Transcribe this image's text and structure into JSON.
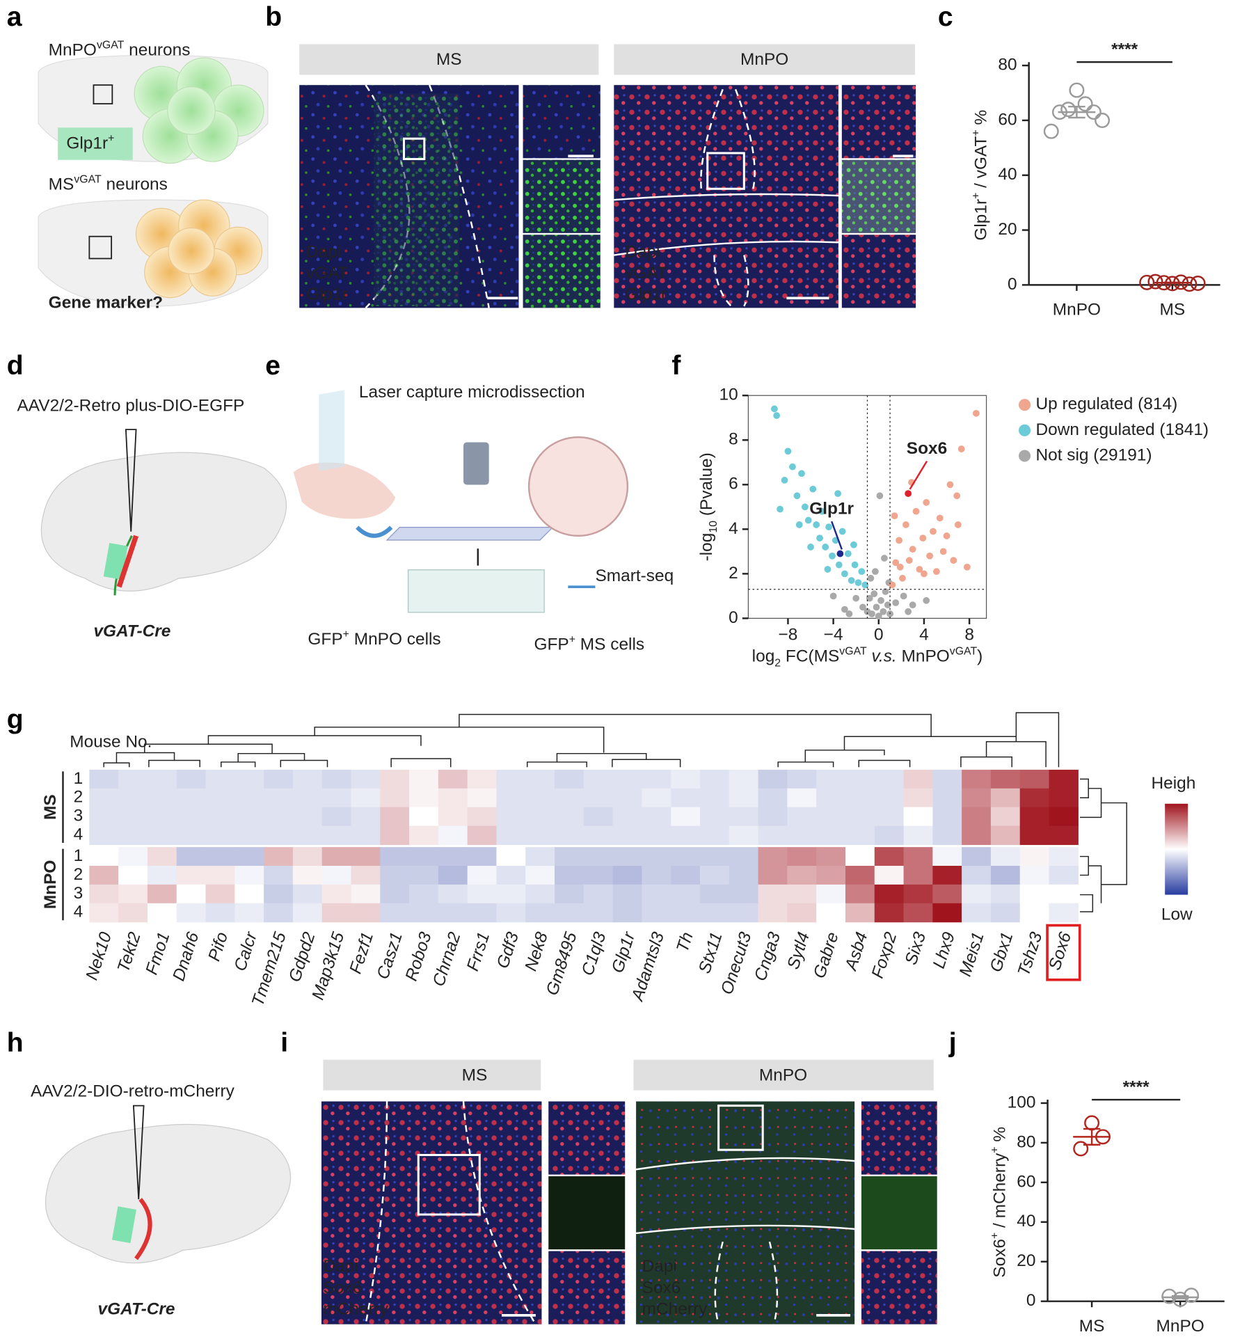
{
  "panels": {
    "a": "a",
    "b": "b",
    "c": "c",
    "d": "d",
    "e": "e",
    "f": "f",
    "g": "g",
    "h": "h",
    "i": "i",
    "j": "j"
  },
  "a": {
    "top": [
      {
        "text": "MnPO"
      },
      {
        "text": "vGAT",
        "style": "sup"
      },
      {
        "text": " neurons"
      }
    ],
    "marker": [
      {
        "text": "Glp1r"
      },
      {
        "text": "+",
        "style": "sup"
      }
    ],
    "bottom": [
      {
        "text": "MS"
      },
      {
        "text": "vGAT",
        "style": "sup"
      },
      {
        "text": " neurons"
      }
    ],
    "question": "Gene marker?"
  },
  "b": {
    "headers": [
      "MS",
      "MnPO"
    ],
    "channels": [
      "Dapi",
      "vGAT",
      "Glp1r"
    ]
  },
  "d": {
    "virus": "AAV2/2-Retro plus-DIO-EGFP",
    "mouse": "vGAT-Cre"
  },
  "e": {
    "title": "Laser capture microdissection",
    "seq": "Smart-seq",
    "mnpo": [
      {
        "text": "GFP"
      },
      {
        "text": "+",
        "style": "sup"
      },
      {
        "text": " MnPO cells"
      }
    ],
    "ms": [
      {
        "text": "GFP"
      },
      {
        "text": "+",
        "style": "sup"
      },
      {
        "text": " MS cells"
      }
    ]
  },
  "h": {
    "virus": "AAV2/2-DIO-retro-mCherry",
    "mouse": "vGAT-Cre"
  },
  "i": {
    "headers": [
      "MS",
      "MnPO"
    ],
    "channels": [
      "Dapi",
      "Sox6",
      "mCherry"
    ]
  },
  "chart_data": [
    {
      "type": "dot",
      "y_label": [
        {
          "text": "Glp1r"
        },
        {
          "text": "+",
          "style": "sup"
        },
        {
          "text": " / vGAT"
        },
        {
          "text": "+",
          "style": "sup"
        },
        {
          "text": " %"
        }
      ],
      "significance": "****",
      "ylim": [
        0,
        80
      ],
      "yticks": [
        0,
        20,
        40,
        60,
        80
      ],
      "groups": [
        {
          "name": "MnPO",
          "color": "#9a9a9a",
          "values": [
            71,
            66,
            64,
            63,
            63,
            60,
            56
          ],
          "mean": 63,
          "sem": 2
        },
        {
          "name": "MS",
          "color": "#a3231f",
          "values": [
            0.5,
            1,
            0.8,
            0.3,
            1.2,
            0.6,
            0.9
          ],
          "mean": 0.8,
          "sem": 0.1
        }
      ]
    },
    {
      "type": "volcano",
      "y_label": [
        {
          "text": "-log"
        },
        {
          "text": "10",
          "style": "sub"
        },
        {
          "text": " (Pvalue)"
        }
      ],
      "x_label": [
        {
          "text": "log"
        },
        {
          "text": "2",
          "style": "sub"
        },
        {
          "text": " FC(MS"
        },
        {
          "text": "vGAT",
          "style": "sup"
        },
        {
          "text": " v.s.",
          "style": "i"
        },
        {
          "text": " MnPO"
        },
        {
          "text": "vGAT",
          "style": "sup"
        },
        {
          "text": ")"
        }
      ],
      "xlim": [
        -11.5,
        9.5
      ],
      "xticks": [
        {
          "value": -8,
          "label": "−8"
        },
        {
          "value": -4,
          "label": "−4"
        },
        0,
        4,
        8
      ],
      "ylim": [
        0,
        10
      ],
      "yticks": [
        0,
        2,
        4,
        6,
        8,
        10
      ],
      "x_thresholds": [
        -1,
        1
      ],
      "y_threshold": 1.3,
      "series": [
        {
          "name": "Up regulated (814)",
          "color": "#f0a58f",
          "x": [
            1.2,
            1.5,
            1.8,
            2.1,
            2.4,
            2.7,
            3,
            3.3,
            3.6,
            3.9,
            4.2,
            4.5,
            4.8,
            5.1,
            5.4,
            5.7,
            6,
            6.3,
            6.6,
            7,
            7.3,
            7.8,
            8.6,
            1.4,
            2.9,
            6.9,
            4,
            1.9
          ],
          "y": [
            1.5,
            2.5,
            3.5,
            1.8,
            4.2,
            2.6,
            3.1,
            4.8,
            2.2,
            3.6,
            5.2,
            2.8,
            3.9,
            2.1,
            4.5,
            3,
            3.7,
            6,
            2.6,
            4.2,
            7.6,
            2.3,
            9.2,
            4.6,
            6.1,
            5.5,
            2,
            2.3
          ]
        },
        {
          "name": "Down regulated (1841)",
          "color": "#6ccbd6",
          "x": [
            -9.2,
            -9,
            -8.3,
            -8,
            -7.6,
            -7.2,
            -6.8,
            -6.5,
            -6.2,
            -5.8,
            -5.5,
            -5.2,
            -5,
            -4.7,
            -4.4,
            -4.1,
            -3.8,
            -3.5,
            -3.2,
            -3,
            -2.7,
            -2.4,
            -2.1,
            -1.8,
            -1.5,
            -1.2,
            -6,
            -7,
            -4.5,
            -2.2,
            -8.7,
            -3.6
          ],
          "y": [
            9.4,
            9.1,
            6.2,
            7.5,
            6.8,
            5.5,
            6.5,
            5,
            4.4,
            5.8,
            4.2,
            3.6,
            4.8,
            3.2,
            4.1,
            2.8,
            3.5,
            2.4,
            3.9,
            2,
            2.9,
            1.7,
            2.4,
            1.6,
            2.1,
            1.5,
            3.2,
            4.2,
            2.2,
            3.3,
            4.9,
            5.6
          ]
        },
        {
          "name": "Not sig (29191)",
          "color": "#a9a9a9",
          "x": [
            -1,
            -0.8,
            -0.6,
            -0.4,
            -0.2,
            0,
            0.2,
            0.4,
            0.6,
            0.8,
            1,
            -1.4,
            1.5,
            -2,
            2.2,
            -3,
            3,
            -0.3,
            0.5,
            0.1,
            -0.7,
            0.9,
            -4,
            4.2,
            -2.6,
            2.6
          ],
          "y": [
            0.3,
            0.9,
            0.2,
            1.1,
            0.5,
            0.1,
            0.8,
            0.3,
            1.2,
            0.6,
            0.2,
            0.5,
            0.7,
            0.9,
            1,
            0.4,
            0.6,
            2.1,
            2.7,
            5.5,
            1.8,
            1.6,
            1,
            0.8,
            0.2,
            0.3
          ]
        }
      ],
      "highlights": [
        {
          "label": "Sox6",
          "x": 2.6,
          "y": 5.6,
          "color": "#e0202a"
        },
        {
          "label": "Glp1r",
          "x": -3.4,
          "y": 2.9,
          "color": "#1b2a8c"
        }
      ]
    },
    {
      "type": "heatmap",
      "row_title": "Mouse No.",
      "legend_high": "Heigh",
      "legend_low": "Low",
      "scale": [
        -2,
        2
      ],
      "highlight_gene_index": 33,
      "genes": [
        "Nek10",
        "Tekt2",
        "Fmo1",
        "Dnah6",
        "Pifo",
        "Calcr",
        "Tmem215",
        "Gdpd2",
        "Map3k15",
        "Fezf1",
        "Casz1",
        "Robo3",
        "Chrna2",
        "Frrs1",
        "Gdf3",
        "Nek8",
        "Gm8495",
        "C1ql3",
        "Glp1r",
        "Adamtsl3",
        "Th",
        "Stx11",
        "Onecut3",
        "Cnga3",
        "Sytl4",
        "Gabre",
        "Asb4",
        "Foxp2",
        "Six3",
        "Lhx9",
        "Meis1",
        "Gbx1",
        "Tshz3",
        "Sox6"
      ],
      "groups": [
        {
          "name": "MS",
          "rows": [
            "1",
            "2",
            "3",
            "4"
          ]
        },
        {
          "name": "MnPO",
          "rows": [
            "1",
            "2",
            "3",
            "4"
          ]
        }
      ],
      "values": [
        [
          -0.4,
          -0.3,
          -0.3,
          -0.4,
          -0.3,
          -0.3,
          -0.4,
          -0.3,
          -0.4,
          -0.3,
          0.3,
          0.1,
          0.5,
          0.2,
          -0.3,
          -0.3,
          -0.4,
          -0.3,
          -0.3,
          -0.3,
          -0.2,
          -0.3,
          -0.2,
          -0.5,
          -0.4,
          -0.3,
          -0.3,
          -0.3,
          0.4,
          -0.4,
          1.1,
          1.3,
          1.4,
          1.9
        ],
        [
          -0.3,
          -0.3,
          -0.3,
          -0.3,
          -0.3,
          -0.3,
          -0.3,
          -0.3,
          -0.3,
          -0.2,
          0.3,
          0.1,
          0.2,
          0.1,
          -0.3,
          -0.3,
          -0.3,
          -0.3,
          -0.3,
          -0.2,
          -0.3,
          -0.3,
          -0.2,
          -0.4,
          -0.1,
          -0.3,
          -0.3,
          -0.3,
          0.3,
          -0.4,
          1.0,
          0.6,
          1.8,
          1.9
        ],
        [
          -0.3,
          -0.3,
          -0.3,
          -0.3,
          -0.3,
          -0.3,
          -0.3,
          -0.3,
          -0.4,
          -0.3,
          0.5,
          0.0,
          0.2,
          0.3,
          -0.3,
          -0.3,
          -0.3,
          -0.4,
          -0.3,
          -0.3,
          -0.1,
          -0.3,
          -0.3,
          -0.4,
          -0.3,
          -0.3,
          -0.3,
          -0.3,
          0.0,
          -0.4,
          1.1,
          0.4,
          1.9,
          2.0
        ],
        [
          -0.3,
          -0.3,
          -0.3,
          -0.3,
          -0.3,
          -0.3,
          -0.3,
          -0.3,
          -0.3,
          -0.3,
          0.5,
          0.2,
          -0.1,
          0.5,
          -0.3,
          -0.3,
          -0.3,
          -0.3,
          -0.3,
          -0.3,
          -0.3,
          -0.3,
          -0.2,
          -0.3,
          -0.3,
          -0.3,
          -0.3,
          -0.4,
          -0.2,
          -0.4,
          1.1,
          0.6,
          1.9,
          1.9
        ],
        [
          0.0,
          -0.1,
          0.3,
          -0.6,
          -0.6,
          -0.6,
          0.6,
          0.3,
          0.7,
          0.7,
          -0.6,
          -0.6,
          -0.6,
          -0.6,
          0.0,
          -0.3,
          -0.5,
          -0.5,
          -0.5,
          -0.5,
          -0.5,
          -0.5,
          -0.5,
          0.9,
          1.0,
          0.9,
          0.0,
          1.5,
          1.2,
          -0.1,
          -0.6,
          -0.2,
          0.1,
          -0.2
        ],
        [
          0.6,
          0.0,
          -0.2,
          0.2,
          0.2,
          -0.1,
          -0.4,
          0.1,
          -0.1,
          0.3,
          -0.5,
          -0.5,
          -0.7,
          -0.1,
          -0.3,
          -0.1,
          -0.6,
          -0.6,
          -0.7,
          -0.5,
          -0.6,
          -0.4,
          -0.5,
          0.9,
          0.7,
          0.8,
          1.3,
          0.1,
          1.2,
          1.9,
          -0.4,
          -0.7,
          -0.1,
          -0.3
        ],
        [
          0.3,
          0.2,
          0.6,
          0.0,
          0.4,
          0.0,
          -0.5,
          -0.3,
          0.2,
          0.1,
          -0.5,
          -0.4,
          -0.3,
          -0.2,
          -0.2,
          -0.3,
          -0.5,
          -0.4,
          -0.5,
          -0.4,
          -0.4,
          -0.5,
          -0.5,
          0.3,
          0.3,
          -0.1,
          1.1,
          1.9,
          1.7,
          1.4,
          -0.2,
          -0.3,
          0.0,
          0.0
        ],
        [
          0.2,
          0.3,
          0.0,
          -0.2,
          -0.3,
          -0.2,
          -0.4,
          -0.2,
          0.4,
          0.4,
          -0.4,
          -0.4,
          -0.4,
          -0.4,
          -0.3,
          -0.4,
          -0.4,
          -0.4,
          -0.5,
          -0.4,
          -0.4,
          -0.4,
          -0.4,
          0.3,
          0.4,
          0.0,
          0.6,
          1.8,
          1.5,
          2.0,
          -0.3,
          -0.4,
          0.0,
          -0.2
        ]
      ]
    },
    {
      "type": "dot",
      "y_label": [
        {
          "text": "Sox6"
        },
        {
          "text": "+",
          "style": "sup"
        },
        {
          "text": " / mCherry"
        },
        {
          "text": "+",
          "style": "sup"
        },
        {
          "text": " %"
        }
      ],
      "significance": "****",
      "ylim": [
        0,
        100
      ],
      "yticks": [
        0,
        20,
        40,
        60,
        80,
        100
      ],
      "groups": [
        {
          "name": "MS",
          "color": "#b3261e",
          "values": [
            90,
            83,
            77
          ],
          "mean": 83,
          "sem": 4
        },
        {
          "name": "MnPO",
          "color": "#9a9a9a",
          "values": [
            1,
            3,
            2.5
          ],
          "mean": 2,
          "sem": 0.6
        }
      ]
    }
  ]
}
